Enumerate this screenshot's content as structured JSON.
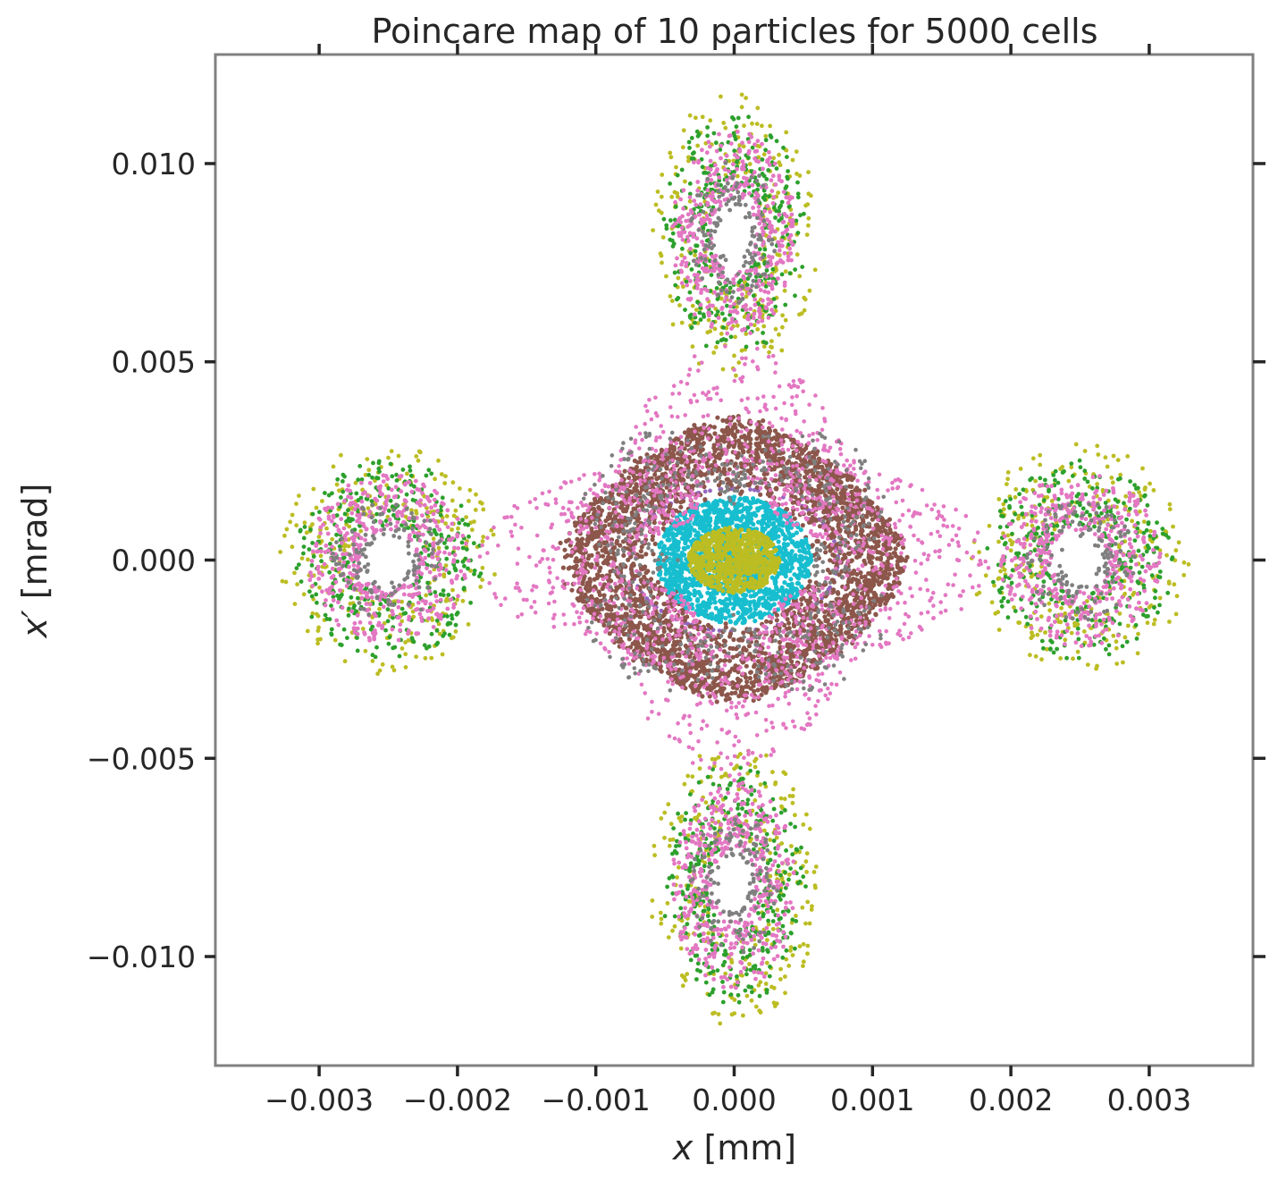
{
  "chart_data": {
    "type": "scatter",
    "title": "Poincare map of 10 particles for 5000 cells",
    "xlabel_var": "x",
    "xlabel_unit": " [mm]",
    "ylabel_var": "x′",
    "ylabel_unit": " [mrad]",
    "xlim": [
      -0.00375,
      0.00375
    ],
    "ylim": [
      -0.01275,
      0.01275
    ],
    "xticks": [
      -0.003,
      -0.002,
      -0.001,
      0.0,
      0.001,
      0.002,
      0.003
    ],
    "xtick_labels": [
      "−0.003",
      "−0.002",
      "−0.001",
      "0.000",
      "0.001",
      "0.002",
      "0.003"
    ],
    "yticks": [
      0.01,
      0.005,
      0.0,
      -0.005,
      -0.01
    ],
    "ytick_labels": [
      "0.010",
      "0.005",
      "0.000",
      "−0.005",
      "−0.010"
    ],
    "grid": false,
    "legend": false,
    "series": [
      {
        "color": "#1f77b4",
        "shape": "center",
        "rx": 2e-05,
        "ry": 6e-05,
        "count": 20
      },
      {
        "color": "#ff7f0e",
        "shape": "center",
        "rx": 3e-05,
        "ry": 8e-05,
        "count": 20
      },
      {
        "color": "#d62728",
        "shape": "center",
        "rx": 4e-05,
        "ry": 0.0001,
        "count": 20
      },
      {
        "color": "#9467bd",
        "shape": "ring",
        "rx": 0.00075,
        "ry": 0.0018,
        "count": 120
      },
      {
        "color": "#8c564b",
        "shape": "blob",
        "rx": 0.00115,
        "ry": 0.0033,
        "count": 3200
      },
      {
        "color": "#17becf",
        "shape": "disk",
        "rx": 0.00056,
        "ry": 0.0016,
        "count": 1500
      },
      {
        "color": "#bcbd22",
        "shape": "island",
        "scale": 1.05,
        "count": 1200
      },
      {
        "color": "#bcbd22",
        "shape": "disk",
        "rx": 0.00033,
        "ry": 0.00082,
        "count": 700
      },
      {
        "color": "#2ca02c",
        "shape": "island",
        "scale": 0.9,
        "count": 1400
      },
      {
        "color": "#e377c2",
        "shape": "island",
        "scale": 0.78,
        "count": 1800
      },
      {
        "color": "#e377c2",
        "shape": "web",
        "count": 1500
      },
      {
        "color": "#7f7f7f",
        "shape": "island",
        "scale": 0.55,
        "count": 500
      },
      {
        "color": "#7f7f7f",
        "shape": "cross",
        "count": 500
      }
    ],
    "islands": {
      "centers": [
        [
          0.0,
          0.0082
        ],
        [
          0.0,
          -0.0082
        ],
        [
          -0.0025,
          0.0
        ],
        [
          0.0025,
          0.0
        ]
      ],
      "note": "four resonance islands at top, bottom, left, right"
    }
  }
}
